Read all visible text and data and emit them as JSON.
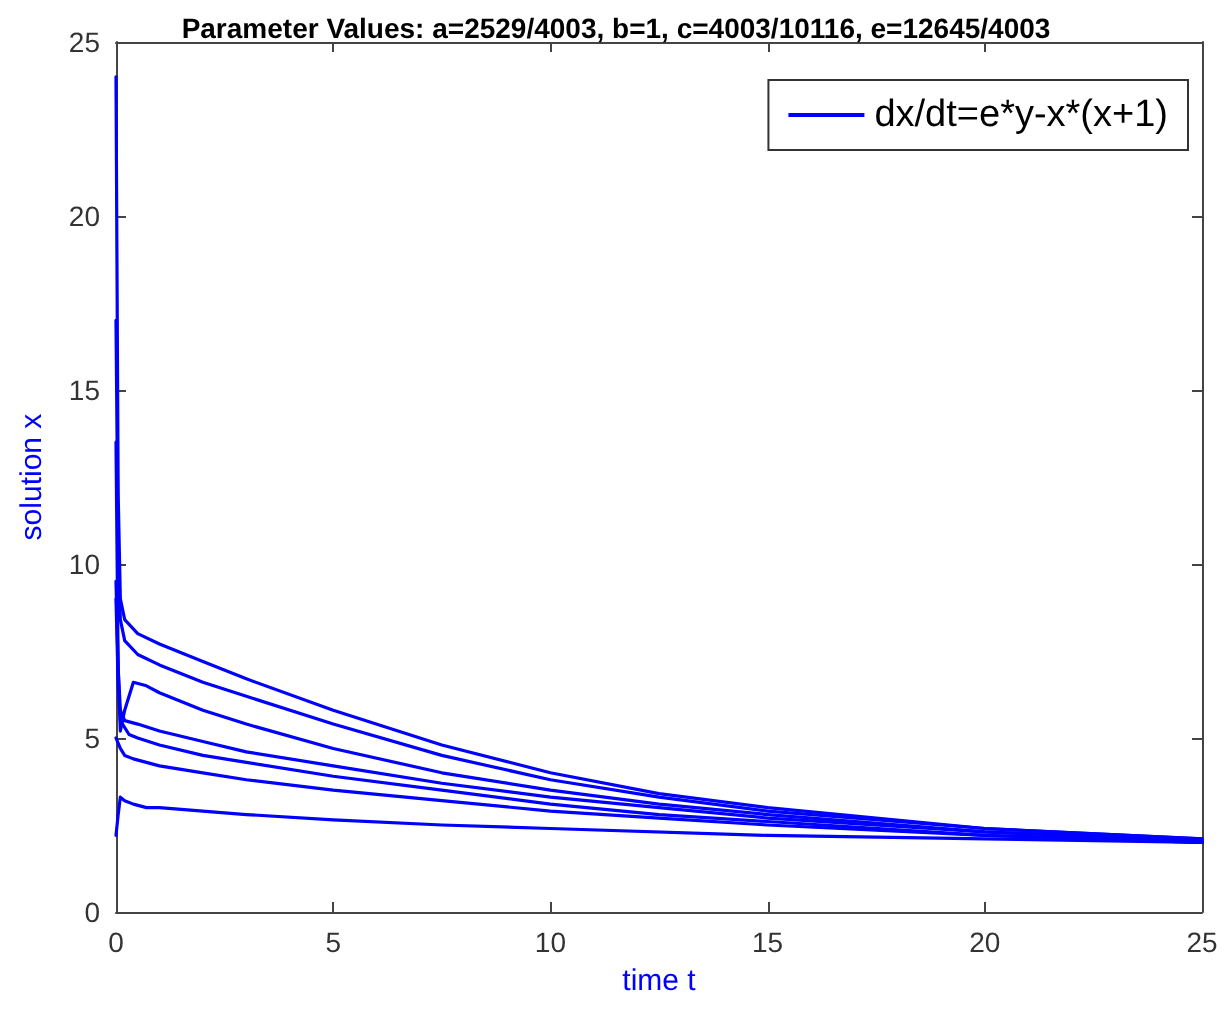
{
  "chart_data": {
    "type": "line",
    "title": "Parameter Values: a=2529/4003, b=1, c=4003/10116, e=12645/4003",
    "xlabel": "time t",
    "ylabel": "solution x",
    "xlim": [
      0,
      25
    ],
    "ylim": [
      0,
      25
    ],
    "xticks": [
      0,
      5,
      10,
      15,
      20,
      25
    ],
    "yticks": [
      0,
      5,
      10,
      15,
      20,
      25
    ],
    "grid": false,
    "legend": "top right",
    "marker": "none",
    "line_style": "solid",
    "series": [
      {
        "name": "dx/dt=e*y-x*(x+1)",
        "color": "#0000ff",
        "x": [
          0,
          0.05,
          0.1,
          0.2,
          0.5,
          1,
          2,
          3,
          5,
          7.5,
          10,
          12.5,
          15,
          20,
          25
        ],
        "values": [
          24,
          12,
          9,
          8.4,
          8,
          7.7,
          7.2,
          6.7,
          5.8,
          4.8,
          4.0,
          3.4,
          3.0,
          2.4,
          2.1
        ]
      },
      {
        "color": "#0000ff",
        "x": [
          0,
          0.05,
          0.1,
          0.2,
          0.5,
          1,
          2,
          3,
          5,
          7.5,
          10,
          12.5,
          15,
          20,
          25
        ],
        "values": [
          17,
          10,
          8.4,
          7.8,
          7.4,
          7.1,
          6.6,
          6.2,
          5.4,
          4.5,
          3.8,
          3.3,
          2.9,
          2.4,
          2.1
        ]
      },
      {
        "color": "#0000ff",
        "x": [
          0,
          0.05,
          0.1,
          0.2,
          0.4,
          0.7,
          1,
          2,
          3,
          5,
          7.5,
          10,
          12.5,
          15,
          20,
          25
        ],
        "values": [
          13.5,
          7,
          5.2,
          5.8,
          6.6,
          6.5,
          6.3,
          5.8,
          5.4,
          4.7,
          4.0,
          3.5,
          3.1,
          2.8,
          2.3,
          2.05
        ]
      },
      {
        "color": "#0000ff",
        "x": [
          0,
          0.05,
          0.1,
          0.2,
          0.5,
          1,
          2,
          3,
          5,
          7.5,
          10,
          12.5,
          15,
          20,
          25
        ],
        "values": [
          9.5,
          7,
          5.8,
          5.5,
          5.4,
          5.2,
          4.9,
          4.6,
          4.2,
          3.7,
          3.3,
          3.0,
          2.7,
          2.3,
          2.05
        ]
      },
      {
        "color": "#0000ff",
        "x": [
          0,
          0.05,
          0.1,
          0.3,
          0.5,
          1,
          2,
          3,
          5,
          7.5,
          10,
          12.5,
          15,
          20,
          25
        ],
        "values": [
          9,
          6.5,
          5.5,
          5.1,
          5.0,
          4.8,
          4.5,
          4.3,
          3.9,
          3.5,
          3.1,
          2.8,
          2.6,
          2.2,
          2.0
        ]
      },
      {
        "color": "#0000ff",
        "x": [
          0,
          0.1,
          0.2,
          0.4,
          0.7,
          1,
          2,
          3,
          5,
          7.5,
          10,
          12.5,
          15,
          20,
          25
        ],
        "values": [
          5,
          4.7,
          4.5,
          4.4,
          4.3,
          4.2,
          4.0,
          3.8,
          3.5,
          3.2,
          2.9,
          2.7,
          2.5,
          2.2,
          2.0
        ]
      },
      {
        "color": "#0000ff",
        "x": [
          0,
          0.05,
          0.1,
          0.2,
          0.4,
          0.7,
          1,
          2,
          3,
          5,
          7.5,
          10,
          15,
          20,
          25
        ],
        "values": [
          2.2,
          2.8,
          3.3,
          3.2,
          3.1,
          3.0,
          3.0,
          2.9,
          2.8,
          2.65,
          2.5,
          2.4,
          2.2,
          2.1,
          2.0
        ]
      }
    ]
  }
}
